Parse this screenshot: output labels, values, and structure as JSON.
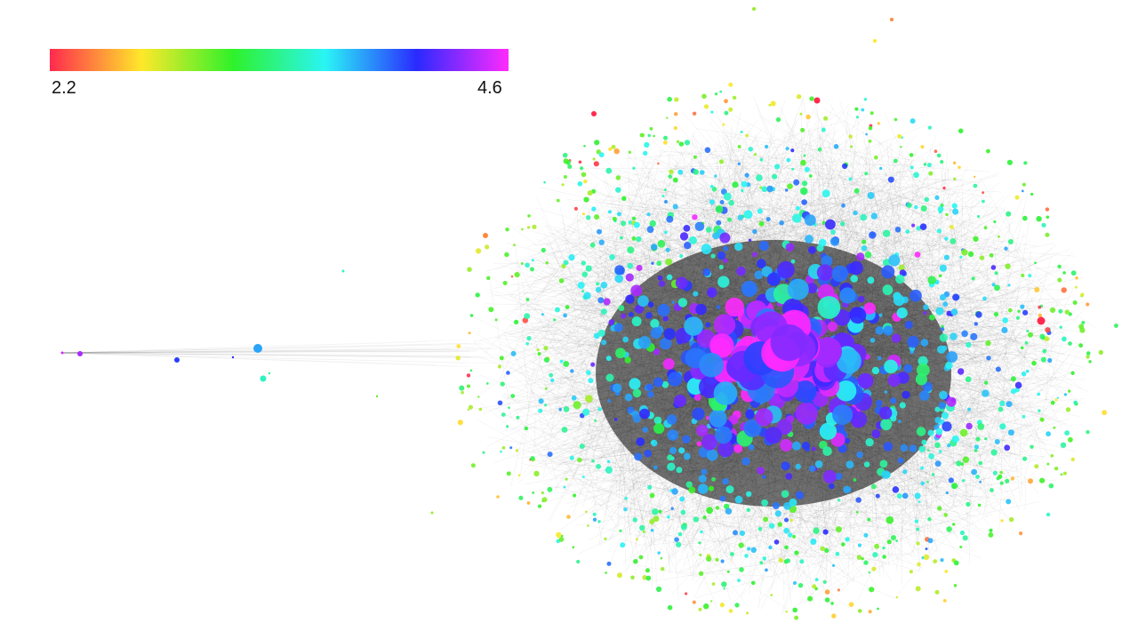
{
  "legend": {
    "min_label": "2.2",
    "max_label": "4.6",
    "min_value": 2.2,
    "max_value": 4.6,
    "gradient_stops": [
      "#ff2a4e",
      "#ffe82a",
      "#2ef22a",
      "#2af5f5",
      "#2a2aff",
      "#ff2aff"
    ]
  },
  "network": {
    "background": "#ffffff",
    "edge_color": "#000000",
    "dominant_colors": [
      "#2a2aff",
      "#2af5f5",
      "#2ef22a",
      "#ffe82a",
      "#ff2a4e",
      "#ff2aff"
    ]
  }
}
